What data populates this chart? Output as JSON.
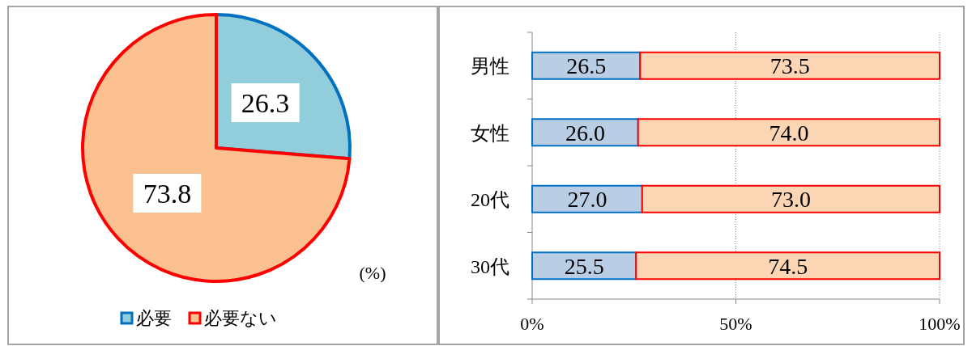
{
  "chart_data": [
    {
      "type": "pie",
      "categories": [
        "必要",
        "必要ない"
      ],
      "values": [
        26.3,
        73.8
      ],
      "colors": [
        "#92cddc",
        "#fac090"
      ],
      "data_labels": true,
      "legend": "bottom",
      "annotations": [
        "(%)"
      ]
    },
    {
      "type": "bar",
      "orientation": "horizontal",
      "stacked": true,
      "categories": [
        "男性",
        "女性",
        "20代",
        "30代"
      ],
      "series": [
        {
          "color": "#b9cde5",
          "values": [
            26.5,
            26.0,
            27.0,
            25.5
          ],
          "value_labels": [
            "26.5",
            "26.0",
            "27.0",
            "25.5"
          ]
        },
        {
          "color": "#fcd5b5",
          "values": [
            73.5,
            74.0,
            73.0,
            74.5
          ],
          "value_labels": [
            "73.5",
            "74.0",
            "73.0",
            "74.5"
          ]
        }
      ],
      "xlim": [
        0,
        100
      ],
      "xticks": [
        {
          "value": 0,
          "label": "0%"
        },
        {
          "value": 50,
          "label": "50%"
        },
        {
          "value": 100,
          "label": "100%"
        }
      ],
      "grid": "x"
    }
  ]
}
